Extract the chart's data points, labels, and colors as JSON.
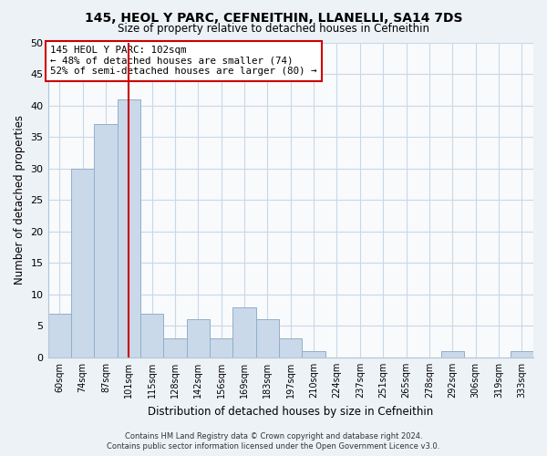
{
  "title": "145, HEOL Y PARC, CEFNEITHIN, LLANELLI, SA14 7DS",
  "subtitle": "Size of property relative to detached houses in Cefneithin",
  "xlabel": "Distribution of detached houses by size in Cefneithin",
  "ylabel": "Number of detached properties",
  "bin_labels": [
    "60sqm",
    "74sqm",
    "87sqm",
    "101sqm",
    "115sqm",
    "128sqm",
    "142sqm",
    "156sqm",
    "169sqm",
    "183sqm",
    "197sqm",
    "210sqm",
    "224sqm",
    "237sqm",
    "251sqm",
    "265sqm",
    "278sqm",
    "292sqm",
    "306sqm",
    "319sqm",
    "333sqm"
  ],
  "bar_values": [
    7,
    30,
    37,
    41,
    7,
    3,
    6,
    3,
    8,
    6,
    3,
    1,
    0,
    0,
    0,
    0,
    0,
    1,
    0,
    0,
    1
  ],
  "bar_color": "#c9d9ea",
  "bar_edge_color": "#92afc8",
  "vline_x_index": 3,
  "vline_color": "#cc0000",
  "annotation_line1": "145 HEOL Y PARC: 102sqm",
  "annotation_line2": "← 48% of detached houses are smaller (74)",
  "annotation_line3": "52% of semi-detached houses are larger (80) →",
  "annotation_box_color": "#ffffff",
  "annotation_box_edge": "#cc0000",
  "ylim": [
    0,
    50
  ],
  "yticks": [
    0,
    5,
    10,
    15,
    20,
    25,
    30,
    35,
    40,
    45,
    50
  ],
  "footer_line1": "Contains HM Land Registry data © Crown copyright and database right 2024.",
  "footer_line2": "Contains public sector information licensed under the Open Government Licence v3.0.",
  "bg_color": "#edf2f7",
  "plot_bg_color": "#f8fafc",
  "grid_color": "#c8d8e8"
}
